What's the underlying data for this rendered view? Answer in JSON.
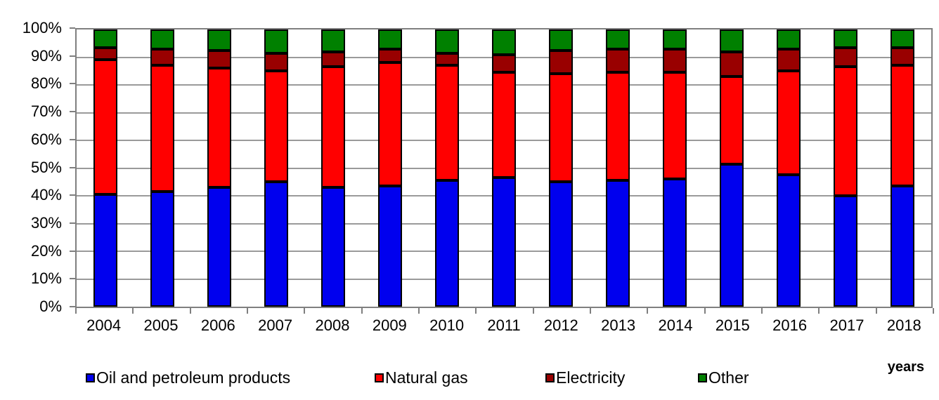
{
  "chart_data": {
    "type": "bar",
    "stacked": true,
    "title": "",
    "xlabel": "years",
    "ylabel": "",
    "ylim": [
      0,
      100
    ],
    "y_tick_labels_top_to_bottom": [
      "100%",
      "90%",
      "80%",
      "70%",
      "60%",
      "50%",
      "40%",
      "30%",
      "20%",
      "10%",
      "0%"
    ],
    "categories": [
      "2004",
      "2005",
      "2006",
      "2007",
      "2008",
      "2009",
      "2010",
      "2011",
      "2012",
      "2013",
      "2014",
      "2015",
      "2016",
      "2017",
      "2018"
    ],
    "series": [
      {
        "name": "Oil and petroleum products",
        "color": "#0000ee",
        "values": [
          40.5,
          41.5,
          43,
          45,
          43,
          43.5,
          45.5,
          46.5,
          45,
          45.5,
          46,
          51.5,
          47.5,
          40,
          43.5
        ]
      },
      {
        "name": "Natural gas",
        "color": "#ff0000",
        "values": [
          48.5,
          45.5,
          43,
          40,
          43.5,
          44.5,
          41.5,
          38,
          39,
          39,
          38.5,
          31.5,
          37.5,
          46.5,
          43.5
        ]
      },
      {
        "name": "Electricity",
        "color": "#990000",
        "values": [
          4.5,
          6,
          6.5,
          6.5,
          5.5,
          5,
          4.5,
          6.5,
          8.5,
          8.5,
          8.5,
          9,
          8,
          7,
          6.5
        ]
      },
      {
        "name": "Other",
        "color": "#008000",
        "values": [
          6.5,
          7,
          7.5,
          8.5,
          8,
          7,
          8.5,
          9,
          7.5,
          7,
          7,
          8,
          7,
          6.5,
          6.5
        ]
      }
    ],
    "legend_position": "bottom",
    "grid": "horizontal"
  },
  "style": {
    "axis_color": "#7f7f7f",
    "gridline_color": "#9a9a9a",
    "bar_border_color": "#000000",
    "background": "#ffffff",
    "legend_x_positions": [
      122,
      533,
      776,
      993
    ]
  }
}
